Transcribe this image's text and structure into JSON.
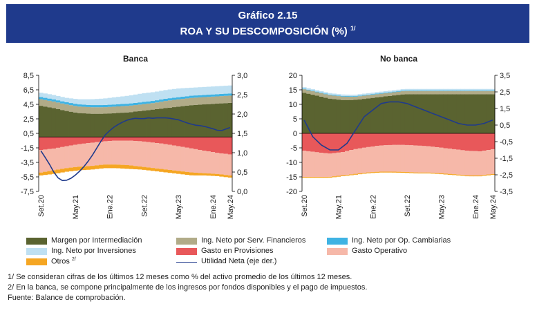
{
  "header": {
    "title_line1": "Gráfico 2.15",
    "title_line2": "ROA Y SU DESCOMPOSICIÓN (%)",
    "title_note": "1/"
  },
  "colors": {
    "margen": "#5a6330",
    "serv": "#b1ab88",
    "cambiarias": "#3fb3e3",
    "inversiones": "#bfe0f2",
    "otros": "#f5a623",
    "provisiones": "#e8585a",
    "operativo": "#f6b8a9",
    "utilidad": "#1f3a8c",
    "header_bg": "#1f3a8c"
  },
  "legend": {
    "margen": "Margen por Intermediación",
    "serv": "Ing. Neto por Serv. Financieros",
    "cambiarias": "Ing. Neto por Op. Cambiarias",
    "inversiones": "Ing. Neto por Inversiones",
    "provisiones": "Gasto en Provisiones",
    "operativo": "Gasto Operativo",
    "otros": "Otros",
    "otros_note": "2/",
    "utilidad": "Utilidad Neta (eje der.)"
  },
  "notes": {
    "n1": "1/ Se consideran cifras de los últimos 12 meses como % del activo promedio de los últimos 12 meses.",
    "n2": "2/ En la banca, se compone principalmente de los ingresos por fondos disponibles y el pago de impuestos.",
    "source": "Fuente: Balance de comprobación."
  },
  "chart_data": [
    {
      "type": "area",
      "title": "Banca",
      "x_ticks": [
        "Set.20",
        "May.21",
        "Ene.22",
        "Set.22",
        "May.23",
        "Ene.24",
        "May.24"
      ],
      "y_left_ticks": [
        "8,5",
        "6,5",
        "4,5",
        "2,5",
        "0,5",
        "-1,5",
        "-3,5",
        "-5,5",
        "-7,5"
      ],
      "y_right_ticks": [
        "3,0",
        "2,5",
        "2,0",
        "1,5",
        "1,0",
        "0,5",
        "0,0"
      ],
      "ylim_left": [
        -7.5,
        8.5
      ],
      "ylim_right": [
        0,
        3
      ],
      "x_months": 45,
      "tick_months": [
        0,
        8,
        16,
        24,
        32,
        40,
        44
      ],
      "stack_pos": {
        "margen": [
          4.3,
          4.0,
          3.6,
          3.3,
          3.2,
          3.2,
          3.3,
          3.4,
          3.6,
          3.8,
          4.0,
          4.2,
          4.4,
          4.5,
          4.6,
          4.7
        ],
        "serv": [
          0.9,
          0.9,
          0.9,
          0.9,
          0.9,
          0.9,
          0.9,
          0.9,
          0.9,
          0.9,
          1.0,
          1.0,
          1.0,
          1.0,
          1.0,
          1.0
        ],
        "cambiarias": [
          0.3,
          0.3,
          0.3,
          0.3,
          0.3,
          0.3,
          0.3,
          0.3,
          0.3,
          0.3,
          0.3,
          0.3,
          0.3,
          0.3,
          0.3,
          0.3
        ],
        "inversiones": [
          0.6,
          0.6,
          0.6,
          0.7,
          0.8,
          0.9,
          1.0,
          1.1,
          1.2,
          1.2,
          1.2,
          1.2,
          1.1,
          1.1,
          1.1,
          1.1
        ]
      },
      "stack_neg": {
        "provisiones": [
          -1.8,
          -1.6,
          -1.3,
          -1.0,
          -0.8,
          -0.6,
          -0.5,
          -0.5,
          -0.6,
          -0.8,
          -1.0,
          -1.3,
          -1.6,
          -1.9,
          -2.2,
          -2.4
        ],
        "operativo": [
          -3.1,
          -3.0,
          -3.0,
          -3.1,
          -3.2,
          -3.2,
          -3.3,
          -3.4,
          -3.5,
          -3.5,
          -3.5,
          -3.4,
          -3.3,
          -3.1,
          -2.9,
          -2.9
        ],
        "otros": [
          -0.4,
          -0.5,
          -0.5,
          -0.5,
          -0.5,
          -0.5,
          -0.5,
          -0.5,
          -0.4,
          -0.4,
          -0.4,
          -0.4,
          -0.4,
          -0.3,
          -0.3,
          -0.3
        ]
      },
      "utilidad_neta_months": [
        0,
        1,
        2,
        3,
        4,
        5,
        6,
        7,
        8,
        9,
        10,
        11,
        12,
        13,
        14,
        15,
        16,
        17,
        18,
        19,
        20,
        21,
        22,
        23,
        24,
        25,
        26,
        27,
        28,
        29,
        30,
        31,
        32,
        33,
        34,
        35,
        36,
        37,
        38,
        39,
        40,
        41,
        42,
        43,
        44
      ],
      "utilidad_neta": [
        1.05,
        0.88,
        0.7,
        0.5,
        0.35,
        0.28,
        0.29,
        0.34,
        0.42,
        0.52,
        0.64,
        0.78,
        0.94,
        1.12,
        1.3,
        1.46,
        1.57,
        1.66,
        1.73,
        1.79,
        1.84,
        1.87,
        1.89,
        1.88,
        1.88,
        1.9,
        1.89,
        1.9,
        1.9,
        1.9,
        1.89,
        1.87,
        1.85,
        1.81,
        1.77,
        1.74,
        1.71,
        1.7,
        1.68,
        1.65,
        1.62,
        1.58,
        1.57,
        1.61,
        1.65
      ]
    },
    {
      "type": "area",
      "title": "No banca",
      "x_ticks": [
        "Set.20",
        "May.21",
        "Ene.22",
        "Set.22",
        "May.23",
        "Ene.24",
        "May.24"
      ],
      "y_left_ticks": [
        "20",
        "15",
        "10",
        "5",
        "0",
        "-5",
        "-10",
        "-15",
        "-20"
      ],
      "y_right_ticks": [
        "3,5",
        "2,5",
        "1,5",
        "0,5",
        "-0,5",
        "-1,5",
        "-2,5",
        "-3,5"
      ],
      "ylim_left": [
        -20,
        20
      ],
      "ylim_right": [
        -3.5,
        3.5
      ],
      "x_months": 45,
      "tick_months": [
        0,
        8,
        16,
        24,
        32,
        40,
        44
      ],
      "stack_pos": {
        "margen": [
          14.0,
          13.0,
          12.0,
          11.5,
          11.5,
          12.0,
          12.5,
          13.0,
          13.5,
          13.5,
          13.5,
          13.5,
          13.5,
          13.5,
          13.5,
          13.5
        ],
        "serv": [
          1.2,
          1.2,
          1.2,
          1.2,
          1.1,
          1.1,
          1.1,
          1.1,
          1.1,
          1.1,
          1.1,
          1.1,
          1.1,
          1.1,
          1.1,
          1.1
        ],
        "cambiarias": [
          0.2,
          0.2,
          0.2,
          0.2,
          0.2,
          0.2,
          0.2,
          0.2,
          0.2,
          0.2,
          0.2,
          0.2,
          0.2,
          0.2,
          0.2,
          0.2
        ],
        "inversiones": [
          0.5,
          0.5,
          0.5,
          0.5,
          0.5,
          0.5,
          0.5,
          0.5,
          0.5,
          0.5,
          0.5,
          0.5,
          0.5,
          0.5,
          0.5,
          0.5
        ]
      },
      "stack_neg": {
        "provisiones": [
          -6.0,
          -6.5,
          -7.0,
          -6.5,
          -5.5,
          -4.8,
          -4.2,
          -4.0,
          -4.0,
          -4.2,
          -4.5,
          -5.0,
          -5.5,
          -6.0,
          -6.2,
          -5.5
        ],
        "operativo": [
          -9.0,
          -8.5,
          -8.0,
          -8.0,
          -8.5,
          -8.7,
          -9.0,
          -9.2,
          -9.3,
          -9.3,
          -9.0,
          -8.8,
          -8.6,
          -8.5,
          -8.3,
          -8.5
        ],
        "otros": [
          -0.3,
          -0.3,
          -0.3,
          -0.3,
          -0.3,
          -0.3,
          -0.3,
          -0.3,
          -0.3,
          -0.3,
          -0.3,
          -0.3,
          -0.3,
          -0.3,
          -0.3,
          -0.3
        ]
      },
      "utilidad_neta_months": [
        0,
        2,
        4,
        6,
        8,
        10,
        12,
        14,
        16,
        18,
        20,
        22,
        24,
        26,
        28,
        30,
        32,
        34,
        36,
        38,
        40,
        42,
        44
      ],
      "utilidad_neta": [
        0.8,
        -0.2,
        -0.7,
        -1.0,
        -1.0,
        -0.6,
        0.2,
        1.0,
        1.4,
        1.8,
        1.9,
        1.9,
        1.8,
        1.6,
        1.4,
        1.2,
        1.0,
        0.8,
        0.6,
        0.5,
        0.5,
        0.6,
        0.8
      ]
    }
  ]
}
